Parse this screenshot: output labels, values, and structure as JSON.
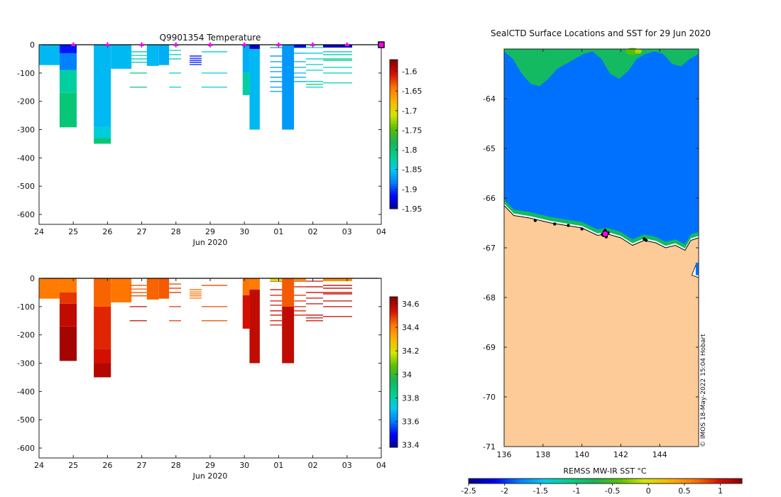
{
  "colors": {
    "temp_scale": [
      "#00008f",
      "#0000ff",
      "#0080ff",
      "#00ccee",
      "#00d08a",
      "#18b455",
      "#58c000",
      "#d4e600",
      "#ffb400",
      "#ff7800",
      "#d81000",
      "#8a0000"
    ],
    "sal_scale": [
      "#00008f",
      "#0000ff",
      "#0080ff",
      "#00ccee",
      "#00d08a",
      "#18b455",
      "#58c000",
      "#d4e600",
      "#ffb400",
      "#ff7800",
      "#d81000",
      "#8a0000"
    ],
    "sst_scale": [
      "#00008f",
      "#0000ff",
      "#0080ff",
      "#00ccee",
      "#00d08a",
      "#18b455",
      "#58c000",
      "#d4e600",
      "#ffb400",
      "#ff7800",
      "#d81000",
      "#8a0000"
    ],
    "land": "#fccb98",
    "marker": "#ff00ff"
  },
  "chart_data": [
    {
      "type": "heatmap",
      "id": "temperature_profile",
      "title": "Q9901354  Temperature",
      "xlabel": "Jun 2020",
      "x_ticks": [
        "24",
        "25",
        "26",
        "27",
        "28",
        "29",
        "30",
        "01",
        "02",
        "03",
        "04"
      ],
      "y_ticks": [
        0,
        -100,
        -200,
        -300,
        -400,
        -500,
        -600
      ],
      "ylim": [
        -635,
        0
      ],
      "colorbar": {
        "min": -1.95,
        "max": -1.57,
        "ticks": [
          -1.6,
          -1.65,
          -1.7,
          -1.75,
          -1.8,
          -1.85,
          -1.9,
          -1.95
        ]
      },
      "surface_markers_day": [
        25.0,
        26.0,
        27.0,
        28.0,
        29.0,
        30.0,
        31.0,
        32.0,
        33.0
      ],
      "profiles": [
        {
          "x0": 24.0,
          "x1": 24.6,
          "bottom": -72,
          "segments": [
            [
              0,
              -72,
              -1.855
            ]
          ]
        },
        {
          "x0": 24.6,
          "x1": 25.1,
          "bottom": -292,
          "segments": [
            [
              0,
              -30,
              -1.91
            ],
            [
              -30,
              -90,
              -1.88
            ],
            [
              -90,
              -170,
              -1.82
            ],
            [
              -170,
              -292,
              -1.8
            ]
          ]
        },
        {
          "x0": 25.6,
          "x1": 26.1,
          "bottom": -350,
          "segments": [
            [
              0,
              -290,
              -1.855
            ],
            [
              -290,
              -330,
              -1.84
            ],
            [
              -330,
              -350,
              -1.8
            ]
          ]
        },
        {
          "x0": 26.1,
          "x1": 26.7,
          "bottom": -85,
          "segments": [
            [
              0,
              -85,
              -1.855
            ]
          ]
        },
        {
          "x0": 27.15,
          "x1": 27.5,
          "bottom": -75,
          "segments": [
            [
              0,
              -75,
              -1.855
            ]
          ]
        },
        {
          "x0": 27.5,
          "x1": 27.8,
          "bottom": -72,
          "segments": [
            [
              0,
              -72,
              -1.86
            ]
          ]
        },
        {
          "x0": 29.95,
          "x1": 30.15,
          "bottom": -178,
          "segments": [
            [
              0,
              -100,
              -1.86
            ],
            [
              -100,
              -178,
              -1.82
            ]
          ]
        },
        {
          "x0": 30.15,
          "x1": 30.45,
          "bottom": -300,
          "segments": [
            [
              0,
              -15,
              -1.93
            ],
            [
              -15,
              -300,
              -1.855
            ]
          ]
        },
        {
          "x0": 31.1,
          "x1": 31.45,
          "bottom": -300,
          "segments": [
            [
              0,
              -300,
              -1.87
            ]
          ]
        }
      ],
      "lines": [
        {
          "x0": 26.65,
          "x1": 27.15,
          "depths": [
            -25,
            -38,
            -50,
            -62
          ],
          "value": -1.83
        },
        {
          "x0": 26.65,
          "x1": 27.15,
          "depths": [
            -100,
            -150
          ],
          "value": -1.8
        },
        {
          "x0": 27.8,
          "x1": 28.15,
          "depths": [
            -20,
            -35,
            -50,
            -100,
            -150
          ],
          "value": -1.83
        },
        {
          "x0": 28.4,
          "x1": 28.75,
          "depths": [
            -40,
            -48,
            -55,
            -62,
            -70
          ],
          "value": -1.91
        },
        {
          "x0": 28.75,
          "x1": 29.5,
          "depths": [
            -25,
            -100,
            -150
          ],
          "value": -1.84
        },
        {
          "x0": 30.75,
          "x1": 31.1,
          "depths": [
            -10,
            -40,
            -60,
            -80,
            -95,
            -115,
            -130,
            -150,
            -165
          ],
          "value": -1.87
        },
        {
          "x0": 31.45,
          "x1": 31.8,
          "depths": [
            -10,
            -30,
            -60,
            -80,
            -100,
            -115,
            -130
          ],
          "value": -1.86
        },
        {
          "x0": 31.8,
          "x1": 32.3,
          "depths": [
            -10,
            -30,
            -50,
            -70,
            -90,
            -130,
            -150
          ],
          "value": -1.84
        },
        {
          "x0": 31.8,
          "x1": 32.3,
          "depths": [
            -140
          ],
          "value": -1.8
        },
        {
          "x0": 32.3,
          "x1": 33.15,
          "depths": [
            -25,
            -35,
            -80,
            -100,
            -135
          ],
          "value": -1.83
        },
        {
          "x0": 32.3,
          "x1": 33.15,
          "depths": [
            -50,
            -55
          ],
          "value": -1.81
        }
      ],
      "top_strips": [
        {
          "x0": 31.45,
          "x1": 31.8,
          "value": -1.92
        },
        {
          "x0": 32.3,
          "x1": 33.15,
          "value": -1.93
        }
      ]
    },
    {
      "type": "heatmap",
      "id": "salinity_profile",
      "title": "",
      "xlabel": "Jun 2020",
      "x_ticks": [
        "24",
        "25",
        "26",
        "27",
        "28",
        "29",
        "30",
        "01",
        "02",
        "03",
        "04"
      ],
      "y_ticks": [
        0,
        -100,
        -200,
        -300,
        -400,
        -500,
        -600
      ],
      "ylim": [
        -635,
        0
      ],
      "colorbar": {
        "min": 33.38,
        "max": 34.66,
        "ticks": [
          34.6,
          34.4,
          34.2,
          34,
          33.8,
          33.6,
          33.4
        ]
      },
      "profiles": [
        {
          "x0": 24.0,
          "x1": 24.6,
          "bottom": -72,
          "segments": [
            [
              0,
              -72,
              34.42
            ]
          ]
        },
        {
          "x0": 24.6,
          "x1": 25.1,
          "bottom": -292,
          "segments": [
            [
              0,
              -50,
              34.42
            ],
            [
              -50,
              -90,
              34.5
            ],
            [
              -90,
              -170,
              34.58
            ],
            [
              -170,
              -292,
              34.62
            ]
          ]
        },
        {
          "x0": 25.6,
          "x1": 26.1,
          "bottom": -350,
          "segments": [
            [
              0,
              -100,
              34.45
            ],
            [
              -100,
              -250,
              34.52
            ],
            [
              -250,
              -300,
              34.55
            ],
            [
              -300,
              -350,
              34.6
            ]
          ]
        },
        {
          "x0": 26.1,
          "x1": 26.7,
          "bottom": -85,
          "segments": [
            [
              0,
              -85,
              34.43
            ]
          ]
        },
        {
          "x0": 27.15,
          "x1": 27.5,
          "bottom": -75,
          "segments": [
            [
              0,
              -75,
              34.45
            ]
          ]
        },
        {
          "x0": 27.5,
          "x1": 27.8,
          "bottom": -72,
          "segments": [
            [
              0,
              -72,
              34.46
            ]
          ]
        },
        {
          "x0": 29.95,
          "x1": 30.15,
          "bottom": -178,
          "segments": [
            [
              0,
              -60,
              34.43
            ],
            [
              -60,
              -178,
              34.55
            ]
          ]
        },
        {
          "x0": 30.15,
          "x1": 30.45,
          "bottom": -300,
          "segments": [
            [
              0,
              -40,
              34.42
            ],
            [
              -40,
              -300,
              34.58
            ]
          ]
        },
        {
          "x0": 31.1,
          "x1": 31.45,
          "bottom": -300,
          "segments": [
            [
              0,
              -100,
              34.46
            ],
            [
              -100,
              -300,
              34.58
            ]
          ]
        }
      ],
      "lines": [
        {
          "x0": 26.65,
          "x1": 27.15,
          "depths": [
            -25,
            -38,
            -50,
            -62
          ],
          "value": 34.47
        },
        {
          "x0": 26.65,
          "x1": 27.15,
          "depths": [
            -100,
            -150
          ],
          "value": 34.58
        },
        {
          "x0": 27.8,
          "x1": 28.15,
          "depths": [
            -20,
            -35,
            -50,
            -100,
            -150
          ],
          "value": 34.5
        },
        {
          "x0": 28.4,
          "x1": 28.75,
          "depths": [
            -40,
            -48,
            -55,
            -62,
            -70
          ],
          "value": 34.44
        },
        {
          "x0": 28.75,
          "x1": 29.5,
          "depths": [
            -25,
            -100,
            -150
          ],
          "value": 34.48
        },
        {
          "x0": 30.75,
          "x1": 31.1,
          "depths": [
            -10,
            -40,
            -60,
            -80,
            -95,
            -115,
            -130,
            -150,
            -165
          ],
          "value": 34.55
        },
        {
          "x0": 31.45,
          "x1": 31.8,
          "depths": [
            -10,
            -30,
            -60,
            -80,
            -100,
            -115,
            -130
          ],
          "value": 34.52
        },
        {
          "x0": 31.8,
          "x1": 32.3,
          "depths": [
            -10,
            -30,
            -50,
            -70,
            -90,
            -130,
            -140,
            -150
          ],
          "value": 34.56
        },
        {
          "x0": 32.3,
          "x1": 33.15,
          "depths": [
            -25,
            -35,
            -50,
            -55,
            -80,
            -100,
            -135
          ],
          "value": 34.58
        }
      ],
      "top_strips": [
        {
          "x0": 30.75,
          "x1": 31.1,
          "value": 34.2
        },
        {
          "x0": 31.45,
          "x1": 31.8,
          "value": 34.38
        },
        {
          "x0": 32.3,
          "x1": 33.15,
          "value": 34.38
        }
      ]
    },
    {
      "type": "heatmap",
      "id": "sst_map",
      "title": "SealCTD Surface Locations and SST for 29 Jun 2020",
      "xlabel": "REMSS MW-IR SST °C",
      "x_ticks": [
        136,
        138,
        140,
        142,
        144
      ],
      "y_ticks": [
        -64,
        -65,
        -66,
        -67,
        -68,
        -69,
        -70,
        -71
      ],
      "xlim": [
        136,
        146
      ],
      "ylim": [
        -71,
        -63
      ],
      "colorbar": {
        "min": -2.5,
        "max": 1.3,
        "ticks": [
          -2.5,
          -2,
          -1.5,
          -1,
          -0.5,
          0,
          0.5,
          1
        ]
      },
      "open_water_sst": -1.85,
      "ice_edge_sst": -0.85,
      "warm_spots_sst": -0.45,
      "ice_edge_profile_lat": [
        -63.05,
        -63.2,
        -63.5,
        -63.7,
        -63.75,
        -63.6,
        -63.4,
        -63.3,
        -63.2,
        -63.1,
        -63.05,
        -63.2,
        -63.5,
        -63.6,
        -63.45,
        -63.2,
        -63.1,
        -63.05,
        -63.1,
        -63.3,
        -63.35,
        -63.2,
        -63.1
      ],
      "coast_lon": [
        136,
        136.5,
        137.3,
        138.4,
        139.2,
        140.0,
        140.8,
        141.3,
        142.0,
        142.6,
        143.2,
        143.8,
        144.3,
        144.8,
        145.3,
        145.6,
        146
      ],
      "coast_lat": [
        -66.15,
        -66.35,
        -66.4,
        -66.5,
        -66.55,
        -66.6,
        -66.75,
        -66.72,
        -66.8,
        -66.95,
        -66.85,
        -66.9,
        -67.0,
        -66.95,
        -67.05,
        -66.85,
        -66.8
      ],
      "bay": {
        "lon": [
          145.65,
          145.85,
          146,
          146
        ],
        "lat": [
          -67.55,
          -67.35,
          -67.3,
          -67.6
        ]
      },
      "profile_positions": [
        [
          141.1,
          -66.75
        ],
        [
          141.2,
          -66.7
        ],
        [
          141.3,
          -66.72
        ],
        [
          141.25,
          -66.78
        ],
        [
          141.15,
          -66.68
        ],
        [
          141.35,
          -66.7
        ],
        [
          141.05,
          -66.73
        ],
        [
          141.2,
          -66.65
        ],
        [
          140.0,
          -66.62
        ],
        [
          143.2,
          -66.82
        ],
        [
          143.3,
          -66.85
        ],
        [
          138.6,
          -66.52
        ],
        [
          139.3,
          -66.55
        ],
        [
          137.6,
          -66.45
        ]
      ],
      "current_position": [
        141.2,
        -66.72
      ],
      "watermark": "© IMOS 18-May-2022 15:04 Hobart"
    }
  ]
}
